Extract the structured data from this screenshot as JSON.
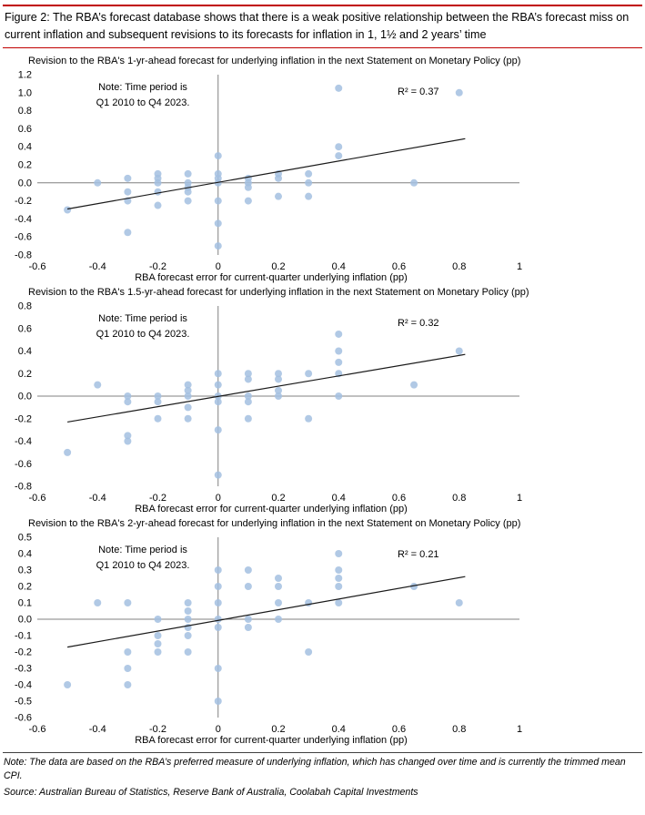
{
  "header": {
    "title": "Figure 2: The RBA’s forecast database shows that there is a weak positive relationship between the RBA’s forecast miss on current inflation and subsequent revisions to its forecasts for inflation in 1, 1½ and 2 years’ time"
  },
  "footer": {
    "note": "Note: The data are based on the RBA’s preferred measure of underlying inflation, which  has changed over time and is currently the trimmed mean CPI.",
    "source": "Source: Australian Bureau of Statistics, Reserve Bank of Australia, Coolabah Capital Investments"
  },
  "colors": {
    "accent_red": "#C00000",
    "point": "#A3BFE0",
    "axis": "#808080",
    "trend": "#1a1a1a"
  },
  "chart_data": [
    {
      "type": "scatter",
      "title": "Revision to the RBA's 1-yr-ahead forecast for underlying inflation in the next Statement on Monetary Policy (pp)",
      "xlabel": "RBA forecast error for current-quarter underlying inflation (pp)",
      "note": "Note: Time period is\nQ1 2010 to Q4 2023.",
      "r2_label": "R² = 0.37",
      "legend": "none",
      "grid": false,
      "xlim": [
        -0.6,
        1
      ],
      "ylim": [
        -0.8,
        1.2
      ],
      "xticks": [
        -0.6,
        -0.4,
        -0.2,
        0,
        0.2,
        0.4,
        0.6,
        0.8,
        1
      ],
      "xtick_labels": [
        "-0.6",
        "-0.4",
        "-0.2",
        "0",
        "0.2",
        "0.4",
        "0.6",
        "0.8",
        "1"
      ],
      "yticks": [
        1.2,
        1.0,
        0.8,
        0.6,
        0.4,
        0.2,
        0.0,
        -0.2,
        -0.4,
        -0.6,
        -0.8
      ],
      "ytick_labels": [
        "1.2",
        "1.0",
        "0.8",
        "0.6",
        "0.4",
        "0.2",
        "0.0",
        "-0.2",
        "-0.4",
        "-0.6",
        "-0.8"
      ],
      "points": [
        [
          -0.5,
          -0.3
        ],
        [
          -0.4,
          0.0
        ],
        [
          -0.3,
          0.05
        ],
        [
          -0.3,
          -0.1
        ],
        [
          -0.3,
          -0.2
        ],
        [
          -0.3,
          -0.55
        ],
        [
          -0.2,
          0.1
        ],
        [
          -0.2,
          0.05
        ],
        [
          -0.2,
          0.0
        ],
        [
          -0.2,
          -0.1
        ],
        [
          -0.2,
          -0.25
        ],
        [
          -0.1,
          0.1
        ],
        [
          -0.1,
          0.0
        ],
        [
          -0.1,
          -0.05
        ],
        [
          -0.1,
          -0.1
        ],
        [
          -0.1,
          -0.2
        ],
        [
          0,
          0.3
        ],
        [
          0,
          0.1
        ],
        [
          0,
          0.05
        ],
        [
          0,
          0.0
        ],
        [
          0,
          -0.2
        ],
        [
          0,
          -0.45
        ],
        [
          0,
          -0.7
        ],
        [
          0.1,
          0.05
        ],
        [
          0.1,
          0.0
        ],
        [
          0.1,
          -0.05
        ],
        [
          0.1,
          -0.2
        ],
        [
          0.2,
          0.1
        ],
        [
          0.2,
          0.05
        ],
        [
          0.2,
          -0.15
        ],
        [
          0.3,
          0.1
        ],
        [
          0.3,
          0.0
        ],
        [
          0.3,
          -0.15
        ],
        [
          0.4,
          1.05
        ],
        [
          0.4,
          0.4
        ],
        [
          0.4,
          0.3
        ],
        [
          0.65,
          0.0
        ],
        [
          0.8,
          1.0
        ]
      ],
      "trend": {
        "x1": -0.5,
        "y1": -0.29,
        "x2": 0.82,
        "y2": 0.49
      }
    },
    {
      "type": "scatter",
      "title": "Revision to the RBA's 1.5-yr-ahead forecast for underlying inflation in the next Statement on Monetary Policy (pp)",
      "xlabel": "RBA forecast error for current-quarter underlying inflation (pp)",
      "note": "Note: Time period is\nQ1 2010 to Q4 2023.",
      "r2_label": "R² = 0.32",
      "legend": "none",
      "grid": false,
      "xlim": [
        -0.6,
        1
      ],
      "ylim": [
        -0.8,
        0.8
      ],
      "xticks": [
        -0.6,
        -0.4,
        -0.2,
        0,
        0.2,
        0.4,
        0.6,
        0.8,
        1
      ],
      "xtick_labels": [
        "-0.6",
        "-0.4",
        "-0.2",
        "0",
        "0.2",
        "0.4",
        "0.6",
        "0.8",
        "1"
      ],
      "yticks": [
        0.8,
        0.6,
        0.4,
        0.2,
        0.0,
        -0.2,
        -0.4,
        -0.6,
        -0.8
      ],
      "ytick_labels": [
        "0.8",
        "0.6",
        "0.4",
        "0.2",
        "0.0",
        "-0.2",
        "-0.4",
        "-0.6",
        "-0.8"
      ],
      "points": [
        [
          -0.5,
          -0.5
        ],
        [
          -0.4,
          0.1
        ],
        [
          -0.3,
          0.0
        ],
        [
          -0.3,
          -0.05
        ],
        [
          -0.3,
          -0.35
        ],
        [
          -0.3,
          -0.4
        ],
        [
          -0.2,
          0.0
        ],
        [
          -0.2,
          -0.05
        ],
        [
          -0.2,
          -0.2
        ],
        [
          -0.1,
          0.1
        ],
        [
          -0.1,
          0.05
        ],
        [
          -0.1,
          0.0
        ],
        [
          -0.1,
          -0.1
        ],
        [
          -0.1,
          -0.2
        ],
        [
          0,
          0.2
        ],
        [
          0,
          0.1
        ],
        [
          0,
          0.0
        ],
        [
          0,
          -0.05
        ],
        [
          0,
          -0.3
        ],
        [
          0,
          -0.7
        ],
        [
          0.1,
          0.2
        ],
        [
          0.1,
          0.15
        ],
        [
          0.1,
          0.0
        ],
        [
          0.1,
          -0.05
        ],
        [
          0.1,
          -0.2
        ],
        [
          0.2,
          0.2
        ],
        [
          0.2,
          0.15
        ],
        [
          0.2,
          0.05
        ],
        [
          0.2,
          0.0
        ],
        [
          0.3,
          0.2
        ],
        [
          0.3,
          -0.2
        ],
        [
          0.4,
          0.55
        ],
        [
          0.4,
          0.4
        ],
        [
          0.4,
          0.3
        ],
        [
          0.4,
          0.2
        ],
        [
          0.4,
          0.0
        ],
        [
          0.65,
          0.1
        ],
        [
          0.8,
          0.4
        ]
      ],
      "trend": {
        "x1": -0.5,
        "y1": -0.23,
        "x2": 0.82,
        "y2": 0.37
      }
    },
    {
      "type": "scatter",
      "title": "Revision to the RBA's 2-yr-ahead forecast for underlying inflation in the next Statement on Monetary Policy (pp)",
      "xlabel": "RBA forecast error for current-quarter underlying inflation (pp)",
      "note": "Note: Time period is\nQ1 2010 to Q4 2023.",
      "r2_label": "R² = 0.21",
      "legend": "none",
      "grid": false,
      "xlim": [
        -0.6,
        1
      ],
      "ylim": [
        -0.6,
        0.5
      ],
      "xticks": [
        -0.6,
        -0.4,
        -0.2,
        0,
        0.2,
        0.4,
        0.6,
        0.8,
        1
      ],
      "xtick_labels": [
        "-0.6",
        "-0.4",
        "-0.2",
        "0",
        "0.2",
        "0.4",
        "0.6",
        "0.8",
        "1"
      ],
      "yticks": [
        0.5,
        0.4,
        0.3,
        0.2,
        0.1,
        0.0,
        -0.1,
        -0.2,
        -0.3,
        -0.4,
        -0.5,
        -0.6
      ],
      "ytick_labels": [
        "0.5",
        "0.4",
        "0.3",
        "0.2",
        "0.1",
        "0.0",
        "-0.1",
        "-0.2",
        "-0.3",
        "-0.4",
        "-0.5",
        "-0.6"
      ],
      "points": [
        [
          -0.5,
          -0.4
        ],
        [
          -0.4,
          0.1
        ],
        [
          -0.3,
          0.1
        ],
        [
          -0.3,
          -0.2
        ],
        [
          -0.3,
          -0.3
        ],
        [
          -0.3,
          -0.4
        ],
        [
          -0.2,
          0.0
        ],
        [
          -0.2,
          -0.1
        ],
        [
          -0.2,
          -0.15
        ],
        [
          -0.2,
          -0.2
        ],
        [
          -0.1,
          0.1
        ],
        [
          -0.1,
          0.05
        ],
        [
          -0.1,
          0.0
        ],
        [
          -0.1,
          -0.05
        ],
        [
          -0.1,
          -0.1
        ],
        [
          -0.1,
          -0.2
        ],
        [
          0,
          0.3
        ],
        [
          0,
          0.2
        ],
        [
          0,
          0.1
        ],
        [
          0,
          0.0
        ],
        [
          0,
          -0.05
        ],
        [
          0,
          -0.3
        ],
        [
          0,
          -0.5
        ],
        [
          0.1,
          0.3
        ],
        [
          0.1,
          0.2
        ],
        [
          0.1,
          0.0
        ],
        [
          0.1,
          -0.05
        ],
        [
          0.2,
          0.25
        ],
        [
          0.2,
          0.2
        ],
        [
          0.2,
          0.1
        ],
        [
          0.2,
          0.0
        ],
        [
          0.3,
          0.1
        ],
        [
          0.3,
          -0.2
        ],
        [
          0.4,
          0.4
        ],
        [
          0.4,
          0.3
        ],
        [
          0.4,
          0.25
        ],
        [
          0.4,
          0.2
        ],
        [
          0.4,
          0.1
        ],
        [
          0.65,
          0.2
        ],
        [
          0.8,
          0.1
        ]
      ],
      "trend": {
        "x1": -0.5,
        "y1": -0.17,
        "x2": 0.82,
        "y2": 0.26
      }
    }
  ]
}
